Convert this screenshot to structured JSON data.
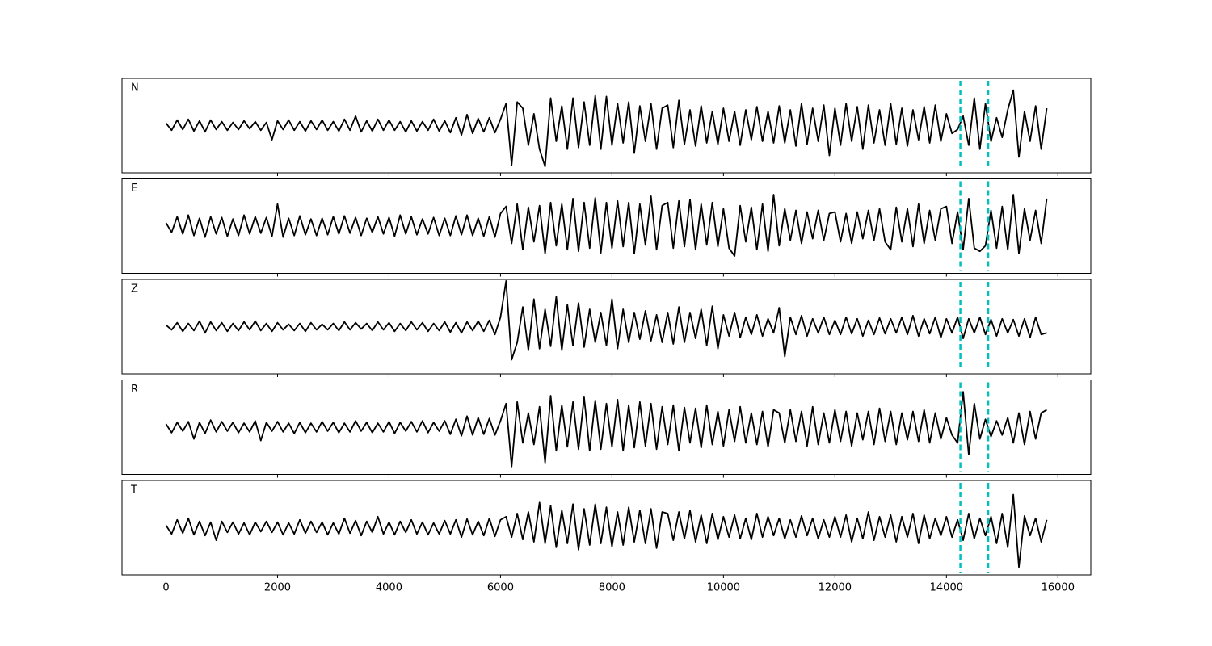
{
  "chart_data": {
    "type": "line",
    "subplots": true,
    "x": [
      0,
      100,
      200,
      300,
      400,
      500,
      600,
      700,
      800,
      900,
      1000,
      1100,
      1200,
      1300,
      1400,
      1500,
      1600,
      1700,
      1800,
      1900,
      2000,
      2100,
      2200,
      2300,
      2400,
      2500,
      2600,
      2700,
      2800,
      2900,
      3000,
      3100,
      3200,
      3300,
      3400,
      3500,
      3600,
      3700,
      3800,
      3900,
      4000,
      4100,
      4200,
      4300,
      4400,
      4500,
      4600,
      4700,
      4800,
      4900,
      5000,
      5100,
      5200,
      5300,
      5400,
      5500,
      5600,
      5700,
      5800,
      5900,
      6000,
      6100,
      6200,
      6300,
      6400,
      6500,
      6600,
      6700,
      6800,
      6900,
      7000,
      7100,
      7200,
      7300,
      7400,
      7500,
      7600,
      7700,
      7800,
      7900,
      8000,
      8100,
      8200,
      8300,
      8400,
      8500,
      8600,
      8700,
      8800,
      8900,
      9000,
      9100,
      9200,
      9300,
      9400,
      9500,
      9600,
      9700,
      9800,
      9900,
      10000,
      10100,
      10200,
      10300,
      10400,
      10500,
      10600,
      10700,
      10800,
      10900,
      11000,
      11100,
      11200,
      11300,
      11400,
      11500,
      11600,
      11700,
      11800,
      11900,
      12000,
      12100,
      12200,
      12300,
      12400,
      12500,
      12600,
      12700,
      12800,
      12900,
      13000,
      13100,
      13200,
      13300,
      13400,
      13500,
      13600,
      13700,
      13800,
      13900,
      14000,
      14100,
      14200,
      14300,
      14400,
      14500,
      14600,
      14700,
      14800,
      14900,
      15000,
      15100,
      15200,
      15300,
      15400,
      15500,
      15600,
      15700,
      15800
    ],
    "series": [
      {
        "name": "N",
        "color": "#000000",
        "values": [
          3,
          -6,
          7,
          -5,
          8,
          -7,
          6,
          -8,
          7,
          -5,
          5,
          -6,
          4,
          -5,
          6,
          -4,
          5,
          -6,
          4,
          -18,
          6,
          -5,
          7,
          -6,
          5,
          -7,
          6,
          -5,
          7,
          -6,
          5,
          -7,
          8,
          -6,
          12,
          -8,
          6,
          -7,
          8,
          -6,
          7,
          -6,
          5,
          -8,
          6,
          -7,
          5,
          -6,
          8,
          -7,
          6,
          -9,
          10,
          -12,
          14,
          -10,
          9,
          -8,
          10,
          -9,
          8,
          28,
          -50,
          30,
          22,
          -25,
          15,
          -30,
          -52,
          35,
          -20,
          25,
          -30,
          35,
          -28,
          30,
          -25,
          38,
          -30,
          37,
          -25,
          28,
          -22,
          30,
          -35,
          25,
          -20,
          28,
          -30,
          22,
          26,
          -28,
          32,
          -24,
          20,
          -26,
          25,
          -22,
          18,
          -24,
          22,
          -20,
          18,
          -25,
          20,
          -18,
          24,
          -20,
          18,
          -22,
          25,
          -22,
          20,
          -26,
          28,
          -24,
          22,
          -20,
          26,
          -38,
          22,
          -25,
          28,
          -20,
          24,
          -30,
          26,
          -22,
          20,
          -25,
          28,
          -24,
          22,
          -26,
          20,
          -18,
          24,
          -22,
          26,
          -20,
          15,
          -10,
          -5,
          12,
          -25,
          35,
          -30,
          28,
          -20,
          10,
          -15,
          20,
          45,
          -40,
          18,
          -20,
          25,
          -30,
          22
        ]
      },
      {
        "name": "E",
        "color": "#000000",
        "values": [
          4,
          -8,
          12,
          -10,
          14,
          -12,
          10,
          -14,
          12,
          -10,
          11,
          -13,
          9,
          -12,
          14,
          -10,
          12,
          -9,
          11,
          -13,
          28,
          -14,
          10,
          -12,
          13,
          -11,
          9,
          -12,
          10,
          -11,
          12,
          -10,
          13,
          -9,
          11,
          -12,
          10,
          -8,
          12,
          -10,
          11,
          -13,
          14,
          -10,
          12,
          -11,
          9,
          -10,
          11,
          -12,
          10,
          -12,
          13,
          -11,
          14,
          -12,
          10,
          -13,
          12,
          -14,
          16,
          25,
          -22,
          28,
          -30,
          24,
          -20,
          26,
          -35,
          30,
          -25,
          28,
          -30,
          35,
          -32,
          30,
          -28,
          36,
          -34,
          30,
          -28,
          32,
          -26,
          30,
          -35,
          28,
          -24,
          38,
          -30,
          26,
          30,
          -28,
          32,
          -26,
          34,
          -30,
          28,
          -24,
          30,
          -26,
          22,
          -28,
          -38,
          26,
          -20,
          24,
          -30,
          28,
          -32,
          40,
          -25,
          22,
          -18,
          20,
          -22,
          18,
          -16,
          20,
          -18,
          16,
          18,
          -20,
          16,
          -22,
          18,
          -16,
          20,
          -18,
          22,
          -20,
          -30,
          24,
          -20,
          22,
          -26,
          28,
          -22,
          20,
          -18,
          22,
          25,
          -22,
          18,
          -30,
          35,
          -28,
          -32,
          -25,
          20,
          -28,
          25,
          -30,
          40,
          -35,
          22,
          -18,
          20,
          -22,
          35
        ]
      },
      {
        "name": "Z",
        "color": "#000000",
        "values": [
          2,
          -4,
          5,
          -6,
          4,
          -5,
          7,
          -8,
          6,
          -5,
          5,
          -6,
          4,
          -5,
          6,
          -4,
          7,
          -5,
          4,
          -6,
          5,
          -4,
          3,
          -5,
          4,
          -6,
          5,
          -4,
          3,
          -4,
          4,
          -5,
          6,
          -4,
          5,
          -3,
          4,
          -5,
          6,
          -4,
          5,
          -6,
          4,
          -5,
          6,
          -4,
          5,
          -6,
          4,
          -5,
          6,
          -7,
          5,
          -8,
          6,
          -5,
          7,
          -6,
          8,
          -10,
          12,
          58,
          -42,
          -20,
          25,
          -30,
          35,
          -28,
          22,
          -25,
          38,
          -30,
          28,
          -24,
          30,
          -26,
          22,
          -20,
          18,
          -24,
          35,
          -28,
          22,
          -20,
          18,
          -16,
          20,
          -18,
          15,
          -20,
          18,
          -22,
          25,
          -20,
          18,
          -15,
          22,
          -24,
          26,
          -28,
          15,
          -12,
          18,
          -14,
          12,
          -10,
          15,
          -12,
          10,
          -8,
          24,
          -38,
          12,
          -10,
          14,
          -12,
          10,
          -8,
          12,
          -10,
          8,
          -10,
          12,
          -9,
          10,
          -12,
          8,
          -10,
          11,
          -9,
          10,
          -8,
          12,
          -10,
          14,
          -12,
          10,
          -9,
          12,
          -14,
          10,
          -8,
          12,
          -15,
          10,
          -8,
          12,
          -10,
          9,
          -12,
          10,
          -8,
          9,
          -12,
          10,
          -14,
          12,
          -10,
          -8
        ]
      },
      {
        "name": "R",
        "color": "#000000",
        "values": [
          4,
          -7,
          6,
          -5,
          7,
          -15,
          6,
          -8,
          9,
          -6,
          7,
          -5,
          6,
          -7,
          5,
          -6,
          8,
          -17,
          6,
          -5,
          7,
          -6,
          5,
          -8,
          6,
          -7,
          5,
          -6,
          7,
          -5,
          6,
          -7,
          5,
          -6,
          8,
          -5,
          6,
          -7,
          5,
          -6,
          7,
          -8,
          6,
          -5,
          7,
          -6,
          8,
          -7,
          6,
          -5,
          8,
          -9,
          10,
          -11,
          14,
          -10,
          12,
          -9,
          11,
          -10,
          8,
          30,
          -50,
          32,
          -20,
          18,
          -22,
          26,
          -45,
          40,
          -30,
          28,
          -25,
          32,
          -28,
          38,
          -30,
          34,
          -28,
          30,
          -25,
          35,
          -30,
          28,
          -26,
          32,
          -24,
          30,
          -28,
          26,
          -22,
          28,
          -30,
          25,
          -20,
          24,
          -26,
          28,
          -22,
          20,
          -24,
          22,
          -18,
          26,
          -20,
          18,
          -22,
          20,
          -25,
          22,
          18,
          -20,
          22,
          -18,
          20,
          -24,
          26,
          -22,
          18,
          -20,
          22,
          -18,
          20,
          -24,
          18,
          -16,
          20,
          -22,
          24,
          -18,
          20,
          -22,
          18,
          -16,
          20,
          -18,
          22,
          -20,
          18,
          -15,
          12,
          -10,
          -20,
          45,
          -35,
          30,
          -15,
          10,
          -12,
          8,
          -10,
          12,
          -20,
          18,
          -22,
          20,
          -15,
          18,
          22
        ]
      },
      {
        "name": "T",
        "color": "#000000",
        "values": [
          3,
          -8,
          10,
          -7,
          12,
          -9,
          8,
          -10,
          7,
          -16,
          8,
          -6,
          7,
          -8,
          6,
          -9,
          7,
          -5,
          8,
          -6,
          7,
          -9,
          6,
          -8,
          10,
          -7,
          8,
          -6,
          7,
          -9,
          6,
          -8,
          12,
          -7,
          9,
          -10,
          8,
          -6,
          14,
          -8,
          7,
          -9,
          8,
          -6,
          10,
          -8,
          7,
          -9,
          6,
          -8,
          9,
          -8,
          10,
          -12,
          11,
          -9,
          8,
          -10,
          12,
          -11,
          10,
          14,
          -12,
          18,
          -15,
          20,
          -18,
          32,
          -20,
          28,
          -25,
          22,
          -20,
          30,
          -28,
          24,
          -22,
          30,
          -20,
          26,
          -24,
          20,
          -22,
          26,
          -18,
          22,
          -20,
          24,
          -26,
          20,
          18,
          -16,
          20,
          -14,
          22,
          -18,
          16,
          -20,
          18,
          -15,
          14,
          -12,
          16,
          -14,
          12,
          -15,
          18,
          -12,
          14,
          -10,
          12,
          -14,
          10,
          -12,
          15,
          -10,
          12,
          -14,
          10,
          -12,
          14,
          -12,
          16,
          -18,
          12,
          -14,
          20,
          -16,
          14,
          -12,
          16,
          -18,
          14,
          -12,
          18,
          -20,
          16,
          -14,
          12,
          -10,
          14,
          -12,
          10,
          -16,
          18,
          -14,
          12,
          -10,
          14,
          -20,
          18,
          -25,
          42,
          -50,
          15,
          -10,
          12,
          -18,
          10
        ]
      }
    ],
    "xlim": [
      -790,
      16590
    ],
    "ylim": [
      -60,
      60
    ],
    "xticks": [
      0,
      2000,
      4000,
      6000,
      8000,
      10000,
      12000,
      14000,
      16000
    ],
    "vlines": [
      14250,
      14750
    ],
    "vline_color": "#00bfbf",
    "vline_style": "dashed"
  }
}
